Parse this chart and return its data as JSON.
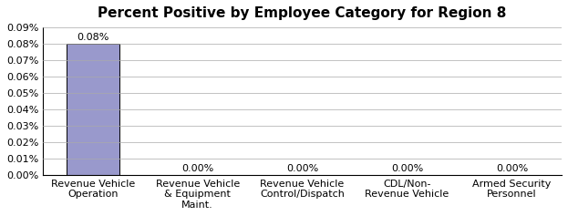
{
  "title": "Percent Positive by Employee Category for Region 8",
  "categories": [
    "Revenue Vehicle\nOperation",
    "Revenue Vehicle\n& Equipment\nMaint.",
    "Revenue Vehicle\nControl/Dispatch",
    "CDL/Non-\nRevenue Vehicle",
    "Armed Security\nPersonnel"
  ],
  "values": [
    0.0008,
    0.0,
    0.0,
    0.0,
    0.0
  ],
  "bar_color": "#9999CC",
  "bar_edge_color": "#000000",
  "ylim": [
    0,
    0.0009
  ],
  "yticks": [
    0.0,
    0.0001,
    0.0002,
    0.0003,
    0.0004,
    0.0005,
    0.0006,
    0.0007,
    0.0008,
    0.0009
  ],
  "ytick_labels": [
    "0.00%",
    "0.01%",
    "0.02%",
    "0.03%",
    "0.04%",
    "0.05%",
    "0.06%",
    "0.07%",
    "0.08%",
    "0.09%"
  ],
  "data_labels": [
    "0.08%",
    "0.00%",
    "0.00%",
    "0.00%",
    "0.00%"
  ],
  "background_color": "#FFFFFF",
  "title_fontsize": 11,
  "label_fontsize": 8,
  "tick_fontsize": 8
}
